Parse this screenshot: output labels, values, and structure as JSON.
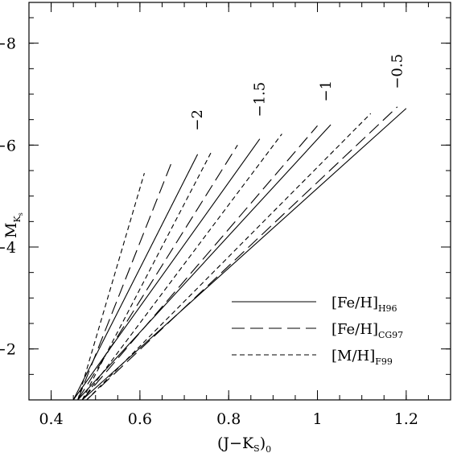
{
  "chart_data": {
    "type": "line",
    "xlabel_main": "(J−K",
    "xlabel_sub1": "S",
    "xlabel_close": ")",
    "xlabel_sub2": "0",
    "ylabel_main": "M",
    "ylabel_sub": "K",
    "ylabel_subsub": "s",
    "xlim": [
      0.35,
      1.3
    ],
    "ylim": [
      -1.0,
      -8.8
    ],
    "y_inverted": true,
    "x_ticks": [
      0.4,
      0.6,
      0.8,
      1.0,
      1.2
    ],
    "x_tick_labels": [
      "0.4",
      "0.6",
      "0.8",
      "1",
      "1.2"
    ],
    "y_ticks": [
      -2,
      -4,
      -6,
      -8
    ],
    "y_tick_labels": [
      "−2",
      "−4",
      "−6",
      "−8"
    ],
    "x_minor_step": 0.05,
    "y_minor_step": 0.5,
    "annotations": [
      {
        "text": "−2",
        "x": 0.74,
        "y": -6.28
      },
      {
        "text": "−1.5",
        "x": 0.88,
        "y": -6.55
      },
      {
        "text": "−1",
        "x": 1.03,
        "y": -6.85
      },
      {
        "text": "−0.5",
        "x": 1.19,
        "y": -7.1
      }
    ],
    "legend": [
      {
        "label_main": "[Fe/H]",
        "label_sub": "H96",
        "style": "solid"
      },
      {
        "label_main": "[Fe/H]",
        "label_sub": "CG97",
        "style": "long-dash"
      },
      {
        "label_main": "[M/H]",
        "label_sub": "F99",
        "style": "short-dash"
      }
    ],
    "legend_position": "bottom-right",
    "series": [
      {
        "style": "solid",
        "x": [
          0.45,
          0.73
        ],
        "y": [
          -1.0,
          -5.82
        ]
      },
      {
        "style": "solid",
        "x": [
          0.45,
          0.87
        ],
        "y": [
          -1.0,
          -6.12
        ]
      },
      {
        "style": "solid",
        "x": [
          0.46,
          1.03
        ],
        "y": [
          -1.0,
          -6.4
        ]
      },
      {
        "style": "solid",
        "x": [
          0.47,
          1.2
        ],
        "y": [
          -1.0,
          -6.72
        ]
      },
      {
        "style": "long-dash",
        "x": [
          0.46,
          0.67
        ],
        "y": [
          -1.0,
          -5.63
        ]
      },
      {
        "style": "long-dash",
        "x": [
          0.46,
          0.82
        ],
        "y": [
          -1.0,
          -6.0
        ]
      },
      {
        "style": "long-dash",
        "x": [
          0.47,
          1.0
        ],
        "y": [
          -1.0,
          -6.38
        ]
      },
      {
        "style": "long-dash",
        "x": [
          0.48,
          1.18
        ],
        "y": [
          -1.0,
          -6.75
        ]
      },
      {
        "style": "short-dash",
        "x": [
          0.46,
          0.61
        ],
        "y": [
          -1.0,
          -5.45
        ]
      },
      {
        "style": "short-dash",
        "x": [
          0.47,
          0.76
        ],
        "y": [
          -1.0,
          -5.85
        ]
      },
      {
        "style": "short-dash",
        "x": [
          0.47,
          0.92
        ],
        "y": [
          -1.0,
          -6.22
        ]
      },
      {
        "style": "short-dash",
        "x": [
          0.48,
          1.12
        ],
        "y": [
          -1.0,
          -6.62
        ]
      }
    ]
  }
}
